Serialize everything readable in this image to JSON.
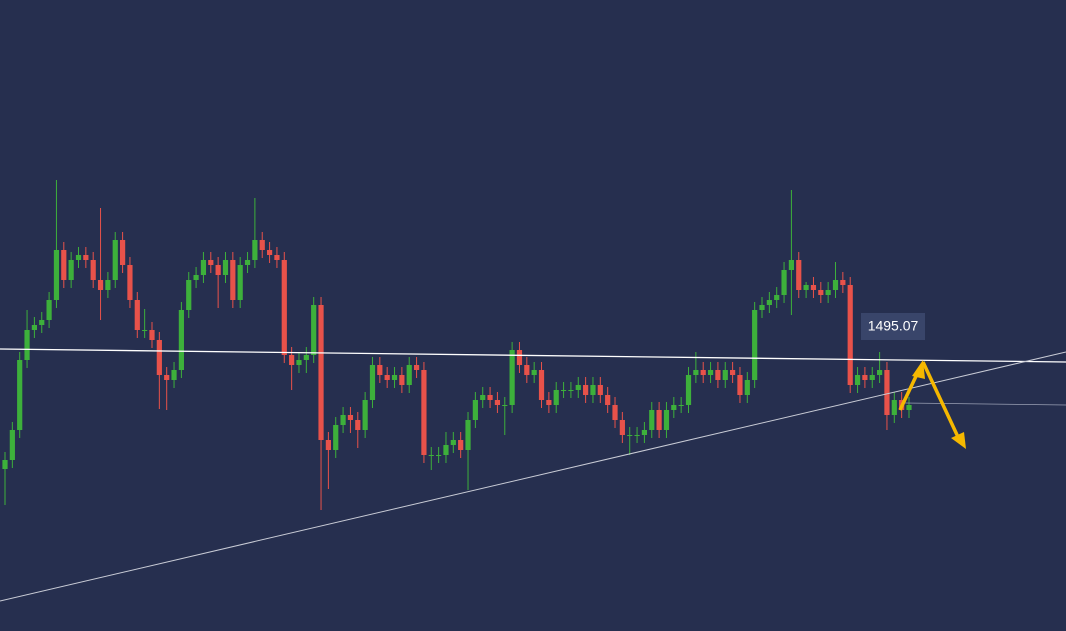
{
  "chart_data": {
    "type": "candlestick",
    "up_color": "#3db03b",
    "down_color": "#e8524a",
    "ylim": [
      1467.8,
      1530.9
    ],
    "price_label": 1495.07,
    "ohlc": [
      [
        1484.0,
        1485.7,
        1480.4,
        1484.9
      ],
      [
        1484.9,
        1488.7,
        1484.1,
        1487.9
      ],
      [
        1487.9,
        1495.7,
        1487.1,
        1494.9
      ],
      [
        1494.9,
        1499.9,
        1494.1,
        1497.9
      ],
      [
        1497.9,
        1499.2,
        1497.1,
        1498.4
      ],
      [
        1498.4,
        1499.7,
        1497.6,
        1498.9
      ],
      [
        1498.9,
        1501.7,
        1498.1,
        1500.9
      ],
      [
        1500.9,
        1512.9,
        1500.1,
        1505.9
      ],
      [
        1505.9,
        1506.7,
        1502.1,
        1502.9
      ],
      [
        1502.9,
        1505.7,
        1502.1,
        1504.9
      ],
      [
        1504.9,
        1506.2,
        1504.1,
        1505.4
      ],
      [
        1505.4,
        1506.2,
        1504.1,
        1504.9
      ],
      [
        1504.9,
        1505.7,
        1502.1,
        1502.9
      ],
      [
        1502.9,
        1510.1,
        1498.9,
        1501.9
      ],
      [
        1501.9,
        1503.7,
        1501.1,
        1502.9
      ],
      [
        1502.9,
        1507.7,
        1502.1,
        1506.9
      ],
      [
        1506.9,
        1507.7,
        1503.6,
        1504.4
      ],
      [
        1504.4,
        1505.2,
        1500.1,
        1500.9
      ],
      [
        1500.9,
        1501.7,
        1497.1,
        1497.9
      ],
      [
        1497.9,
        1500.0,
        1497.1,
        1497.9
      ],
      [
        1497.9,
        1498.7,
        1496.1,
        1496.9
      ],
      [
        1496.9,
        1497.7,
        1490.0,
        1493.4
      ],
      [
        1493.4,
        1494.2,
        1489.9,
        1492.9
      ],
      [
        1492.9,
        1494.7,
        1492.1,
        1493.9
      ],
      [
        1493.9,
        1500.7,
        1493.1,
        1499.9
      ],
      [
        1499.9,
        1503.7,
        1499.1,
        1502.9
      ],
      [
        1502.9,
        1504.2,
        1502.1,
        1503.4
      ],
      [
        1503.4,
        1505.7,
        1502.6,
        1504.9
      ],
      [
        1504.9,
        1505.7,
        1503.6,
        1504.4
      ],
      [
        1504.4,
        1505.2,
        1500.1,
        1503.4
      ],
      [
        1503.4,
        1505.7,
        1502.6,
        1504.9
      ],
      [
        1504.9,
        1505.7,
        1500.1,
        1500.9
      ],
      [
        1500.9,
        1505.2,
        1500.1,
        1504.4
      ],
      [
        1504.4,
        1505.7,
        1503.6,
        1504.9
      ],
      [
        1504.9,
        1511.1,
        1504.1,
        1506.9
      ],
      [
        1506.9,
        1507.7,
        1505.1,
        1505.9
      ],
      [
        1505.9,
        1506.7,
        1504.6,
        1505.4
      ],
      [
        1505.4,
        1506.2,
        1504.1,
        1504.9
      ],
      [
        1504.9,
        1505.7,
        1494.6,
        1495.4
      ],
      [
        1495.4,
        1496.2,
        1491.9,
        1494.4
      ],
      [
        1494.4,
        1495.7,
        1493.6,
        1494.9
      ],
      [
        1494.9,
        1496.2,
        1493.6,
        1495.4
      ],
      [
        1495.4,
        1501.2,
        1494.6,
        1500.4
      ],
      [
        1500.4,
        1501.2,
        1479.9,
        1486.9
      ],
      [
        1486.9,
        1487.7,
        1482.0,
        1485.9
      ],
      [
        1485.9,
        1489.2,
        1485.1,
        1488.4
      ],
      [
        1488.4,
        1490.2,
        1487.6,
        1489.4
      ],
      [
        1489.4,
        1490.2,
        1487.6,
        1488.9
      ],
      [
        1488.9,
        1489.7,
        1486.1,
        1487.9
      ],
      [
        1487.9,
        1491.7,
        1487.1,
        1490.9
      ],
      [
        1490.9,
        1495.2,
        1490.1,
        1494.4
      ],
      [
        1494.4,
        1495.2,
        1492.6,
        1493.4
      ],
      [
        1493.4,
        1494.2,
        1492.1,
        1492.9
      ],
      [
        1492.9,
        1494.2,
        1492.1,
        1493.4
      ],
      [
        1493.4,
        1494.2,
        1491.6,
        1492.4
      ],
      [
        1492.4,
        1495.2,
        1491.6,
        1494.4
      ],
      [
        1494.4,
        1495.2,
        1493.1,
        1493.9
      ],
      [
        1493.9,
        1494.7,
        1484.6,
        1485.4
      ],
      [
        1485.4,
        1486.2,
        1483.9,
        1485.4
      ],
      [
        1485.4,
        1486.2,
        1484.6,
        1485.4
      ],
      [
        1485.4,
        1487.7,
        1484.6,
        1486.4
      ],
      [
        1486.4,
        1487.7,
        1485.6,
        1486.9
      ],
      [
        1486.9,
        1487.7,
        1485.1,
        1485.9
      ],
      [
        1485.9,
        1489.7,
        1481.9,
        1488.9
      ],
      [
        1488.9,
        1491.7,
        1488.1,
        1490.9
      ],
      [
        1490.9,
        1492.2,
        1490.1,
        1491.4
      ],
      [
        1491.4,
        1492.2,
        1490.1,
        1490.9
      ],
      [
        1490.9,
        1491.7,
        1489.6,
        1490.4
      ],
      [
        1490.4,
        1491.2,
        1487.4,
        1490.4
      ],
      [
        1490.4,
        1496.7,
        1489.6,
        1495.9
      ],
      [
        1495.9,
        1496.7,
        1493.6,
        1494.4
      ],
      [
        1494.4,
        1495.2,
        1492.6,
        1493.4
      ],
      [
        1493.4,
        1494.7,
        1492.6,
        1493.9
      ],
      [
        1493.9,
        1494.7,
        1490.1,
        1490.9
      ],
      [
        1490.9,
        1491.7,
        1489.6,
        1490.4
      ],
      [
        1490.4,
        1492.7,
        1489.6,
        1491.9
      ],
      [
        1491.9,
        1492.7,
        1491.1,
        1491.9
      ],
      [
        1491.9,
        1492.7,
        1491.1,
        1491.9
      ],
      [
        1491.9,
        1493.2,
        1491.1,
        1492.4
      ],
      [
        1492.4,
        1493.2,
        1490.6,
        1491.4
      ],
      [
        1491.4,
        1493.2,
        1490.6,
        1492.4
      ],
      [
        1492.4,
        1493.2,
        1490.6,
        1491.4
      ],
      [
        1491.4,
        1492.2,
        1489.6,
        1490.4
      ],
      [
        1490.4,
        1491.2,
        1488.1,
        1488.9
      ],
      [
        1488.9,
        1489.7,
        1486.6,
        1487.4
      ],
      [
        1487.4,
        1488.2,
        1485.4,
        1487.4
      ],
      [
        1487.4,
        1488.2,
        1486.6,
        1487.4
      ],
      [
        1487.4,
        1488.7,
        1486.6,
        1487.9
      ],
      [
        1487.9,
        1490.7,
        1487.1,
        1489.9
      ],
      [
        1489.9,
        1490.7,
        1487.1,
        1487.9
      ],
      [
        1487.9,
        1490.7,
        1487.1,
        1489.9
      ],
      [
        1489.9,
        1491.2,
        1489.1,
        1490.4
      ],
      [
        1490.4,
        1491.2,
        1489.6,
        1490.4
      ],
      [
        1490.4,
        1494.2,
        1489.6,
        1493.4
      ],
      [
        1493.4,
        1495.7,
        1492.6,
        1493.9
      ],
      [
        1493.9,
        1494.7,
        1492.6,
        1493.4
      ],
      [
        1493.4,
        1494.7,
        1492.6,
        1493.9
      ],
      [
        1493.9,
        1494.7,
        1492.1,
        1492.9
      ],
      [
        1492.9,
        1494.7,
        1492.1,
        1493.9
      ],
      [
        1493.9,
        1494.7,
        1492.6,
        1493.4
      ],
      [
        1493.4,
        1494.2,
        1490.6,
        1491.4
      ],
      [
        1491.4,
        1493.7,
        1490.6,
        1492.9
      ],
      [
        1492.9,
        1500.7,
        1492.1,
        1499.9
      ],
      [
        1499.9,
        1501.2,
        1499.1,
        1500.4
      ],
      [
        1500.4,
        1501.7,
        1499.6,
        1500.9
      ],
      [
        1500.9,
        1502.2,
        1500.1,
        1501.4
      ],
      [
        1501.4,
        1504.7,
        1500.6,
        1503.9
      ],
      [
        1503.9,
        1511.9,
        1499.4,
        1504.9
      ],
      [
        1504.9,
        1505.7,
        1501.1,
        1501.9
      ],
      [
        1501.9,
        1502.7,
        1501.1,
        1502.4
      ],
      [
        1502.4,
        1503.2,
        1501.1,
        1501.9
      ],
      [
        1501.9,
        1502.7,
        1500.6,
        1501.4
      ],
      [
        1501.4,
        1502.7,
        1500.6,
        1501.9
      ],
      [
        1501.9,
        1504.7,
        1501.1,
        1502.9
      ],
      [
        1502.9,
        1503.7,
        1501.6,
        1502.4
      ],
      [
        1502.4,
        1503.2,
        1491.6,
        1492.4
      ],
      [
        1492.4,
        1494.2,
        1491.6,
        1493.4
      ],
      [
        1493.4,
        1494.2,
        1492.1,
        1492.9
      ],
      [
        1492.9,
        1494.2,
        1492.1,
        1493.4
      ],
      [
        1493.4,
        1495.7,
        1492.6,
        1493.9
      ],
      [
        1493.9,
        1494.7,
        1487.9,
        1489.4
      ],
      [
        1489.4,
        1491.7,
        1488.6,
        1490.9
      ],
      [
        1490.9,
        1491.7,
        1489.1,
        1489.9
      ],
      [
        1489.9,
        1491.2,
        1489.1,
        1490.4
      ]
    ]
  }
}
